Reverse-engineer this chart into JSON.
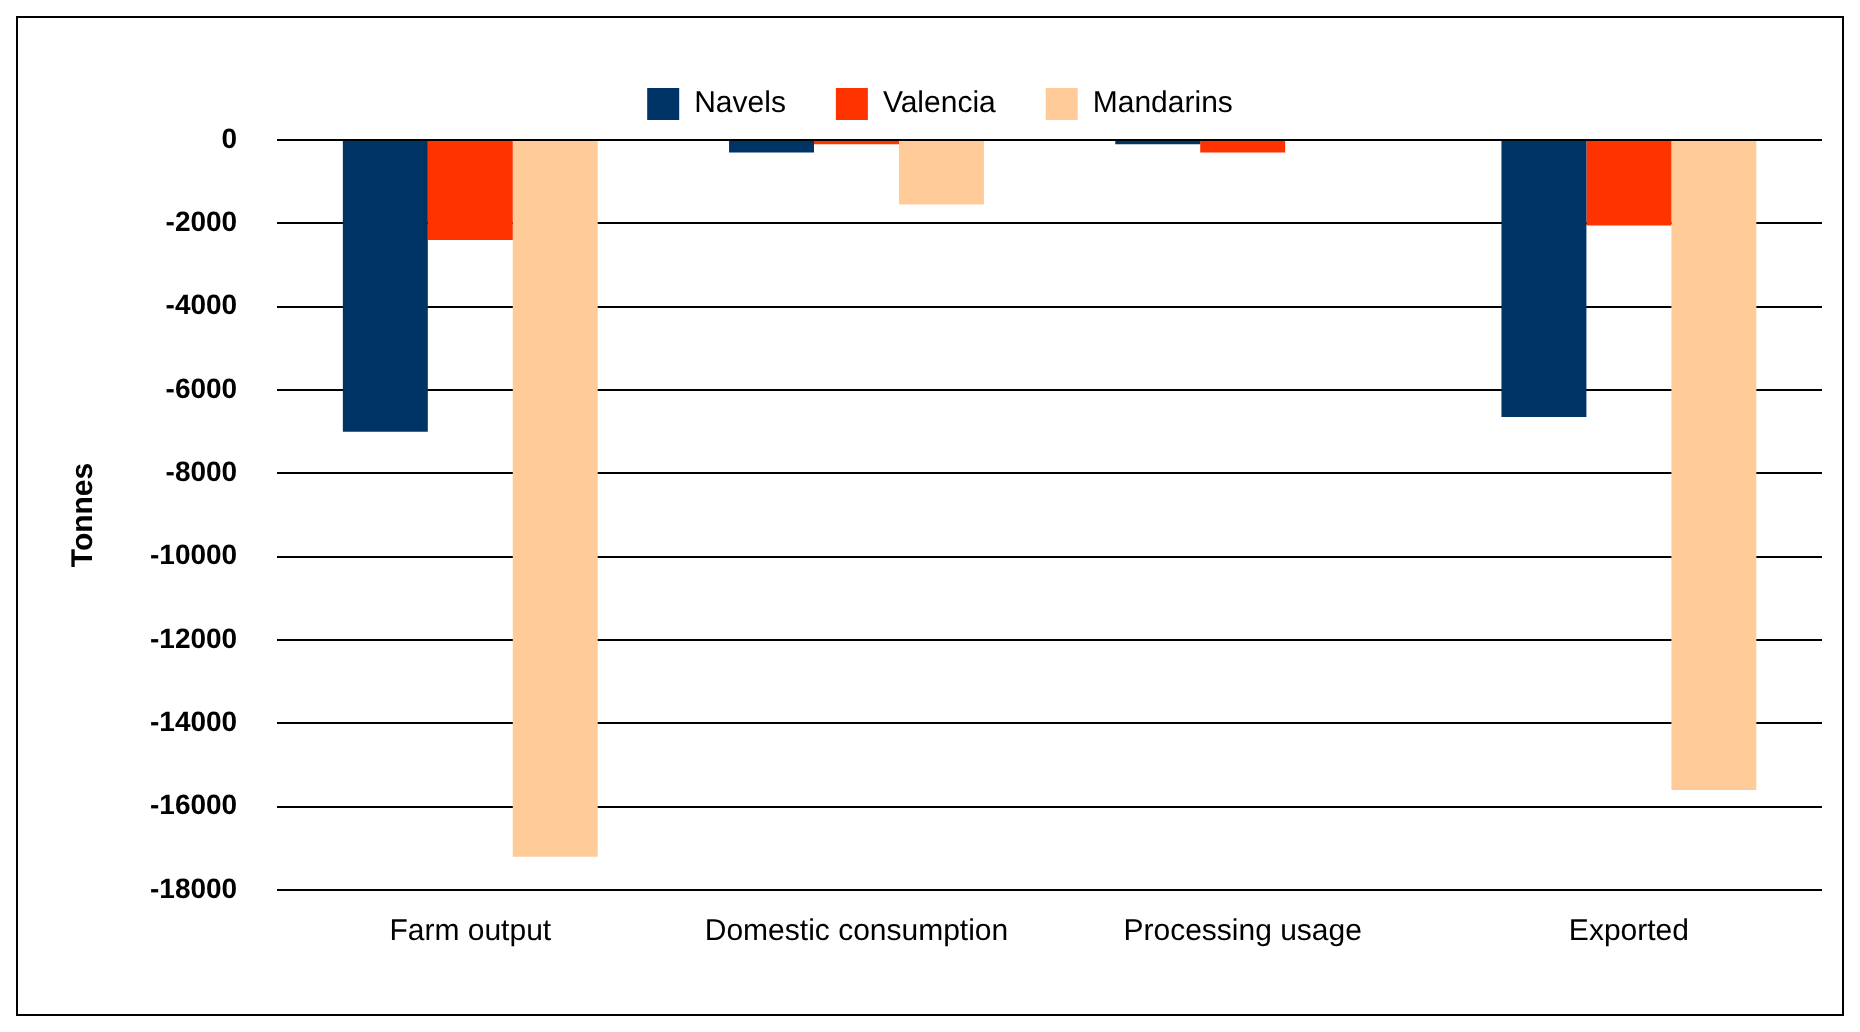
{
  "chart_data": {
    "type": "bar",
    "ylabel": "Tonnes",
    "categories": [
      "Farm output",
      "Domestic consumption",
      "Processing usage",
      "Exported"
    ],
    "series": [
      {
        "name": "Navels",
        "color": "#003366",
        "values": [
          -7000,
          -300,
          -100,
          -6650
        ]
      },
      {
        "name": "Valencia",
        "color": "#ff3300",
        "values": [
          -2400,
          -100,
          -300,
          -2050
        ]
      },
      {
        "name": "Mandarins",
        "color": "#ffcc99",
        "values": [
          -17200,
          -1550,
          0,
          -15600
        ]
      }
    ],
    "ylim": [
      -18000,
      0
    ],
    "yticks": [
      -18000,
      -16000,
      -14000,
      -12000,
      -10000,
      -8000,
      -6000,
      -4000,
      -2000,
      0
    ],
    "grid": "y",
    "legend": "top"
  }
}
